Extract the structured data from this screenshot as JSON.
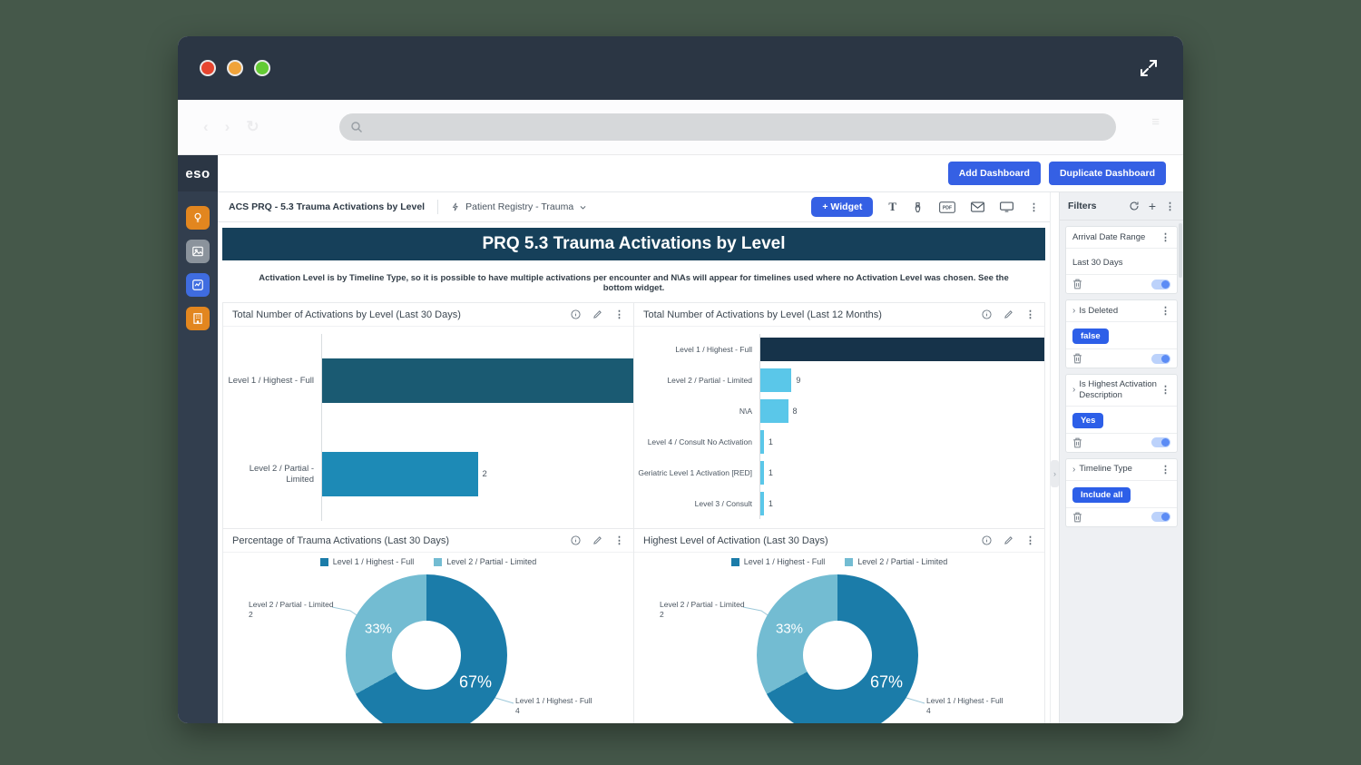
{
  "window": {
    "controls": {
      "close": "red",
      "minimize": "yellow",
      "zoom": "green"
    }
  },
  "browser": {
    "address_placeholder": ""
  },
  "sidebar": {
    "logo": "eso",
    "items": [
      {
        "name": "insights",
        "icon": "lightbulb-icon",
        "color": "#e2861f"
      },
      {
        "name": "documents",
        "icon": "image-document-icon",
        "color": "#8b939c"
      },
      {
        "name": "analytics",
        "icon": "line-chart-icon",
        "color": "#3f6ce0"
      },
      {
        "name": "facility",
        "icon": "building-icon",
        "color": "#e2861f"
      }
    ]
  },
  "header": {
    "add_dashboard": "Add Dashboard",
    "duplicate_dashboard": "Duplicate Dashboard"
  },
  "breadcrumb": {
    "dashboard_title": "ACS PRQ - 5.3 Trauma Activations by Level",
    "registry": "Patient Registry - Trauma"
  },
  "widget_toolbar": {
    "add_widget": "+ Widget",
    "tools": [
      "text-tool",
      "brush-tool",
      "pdf-export",
      "email",
      "present-mode",
      "more"
    ]
  },
  "banner": {
    "title": "PRQ 5.3 Trauma Activations by Level"
  },
  "description": "Activation Level is by Timeline Type, so it is possible to have multiple activations per encounter and N\\As will appear for timelines used where no Activation Level was chosen. See the bottom widget.",
  "filters": {
    "title": "Filters",
    "cards": [
      {
        "label": "Arrival Date Range",
        "value": "Last 30 Days",
        "style": "text",
        "chevron": false,
        "toggle_on": true
      },
      {
        "label": "Is Deleted",
        "value": "false",
        "style": "pill",
        "chevron": true,
        "toggle_on": true
      },
      {
        "label": "Is Highest Activation Description",
        "value": "Yes",
        "style": "pill",
        "chevron": true,
        "toggle_on": true
      },
      {
        "label": "Timeline Type",
        "value": "Include all",
        "style": "pill",
        "chevron": true,
        "toggle_on": true
      }
    ]
  },
  "chart_data": [
    {
      "type": "bar",
      "orientation": "horizontal",
      "title": "Total Number of Activations by Level (Last 30 Days)",
      "categories": [
        "Level 1 / Highest - Full",
        "Level 2 / Partial - Limited"
      ],
      "values": [
        4,
        2
      ],
      "colors": [
        "#1a5a72",
        "#1d8ab6"
      ],
      "xlim": [
        0,
        4
      ],
      "grid": false
    },
    {
      "type": "bar",
      "orientation": "horizontal",
      "title": "Total Number of Activations by Level (Last 12 Months)",
      "categories": [
        "Level 1 / Highest - Full",
        "Level 2 / Partial - Limited",
        "N\\A",
        "Level 4 / Consult No Activation",
        "Geriatric Level 1 Activation [RED]",
        "Level 3 / Consult"
      ],
      "values": [
        82,
        9,
        8,
        1,
        1,
        1
      ],
      "colors": [
        "#16334a",
        "#5ac7e9",
        "#5ac7e9",
        "#5ac7e9",
        "#5ac7e9",
        "#5ac7e9"
      ],
      "xlim": [
        0,
        82
      ],
      "grid": false
    },
    {
      "type": "donut",
      "title": "Percentage of Trauma Activations (Last 30 Days)",
      "legend": [
        "Level 1 / Highest - Full",
        "Level 2 / Partial - Limited"
      ],
      "slices": [
        {
          "label": "Level 1 / Highest - Full",
          "value": 4,
          "pct": 67
        },
        {
          "label": "Level 2 / Partial - Limited",
          "value": 2,
          "pct": 33
        }
      ],
      "colors": [
        "#1b7ca9",
        "#73bcd2"
      ],
      "legend_position": "top"
    },
    {
      "type": "donut",
      "title": "Highest Level of Activation (Last 30 Days)",
      "legend": [
        "Level 1 / Highest - Full",
        "Level 2 / Partial - Limited"
      ],
      "slices": [
        {
          "label": "Level 1 / Highest - Full",
          "value": 4,
          "pct": 67
        },
        {
          "label": "Level 2 / Partial - Limited",
          "value": 2,
          "pct": 33
        }
      ],
      "colors": [
        "#1b7ca9",
        "#73bcd2"
      ],
      "legend_position": "top"
    }
  ]
}
